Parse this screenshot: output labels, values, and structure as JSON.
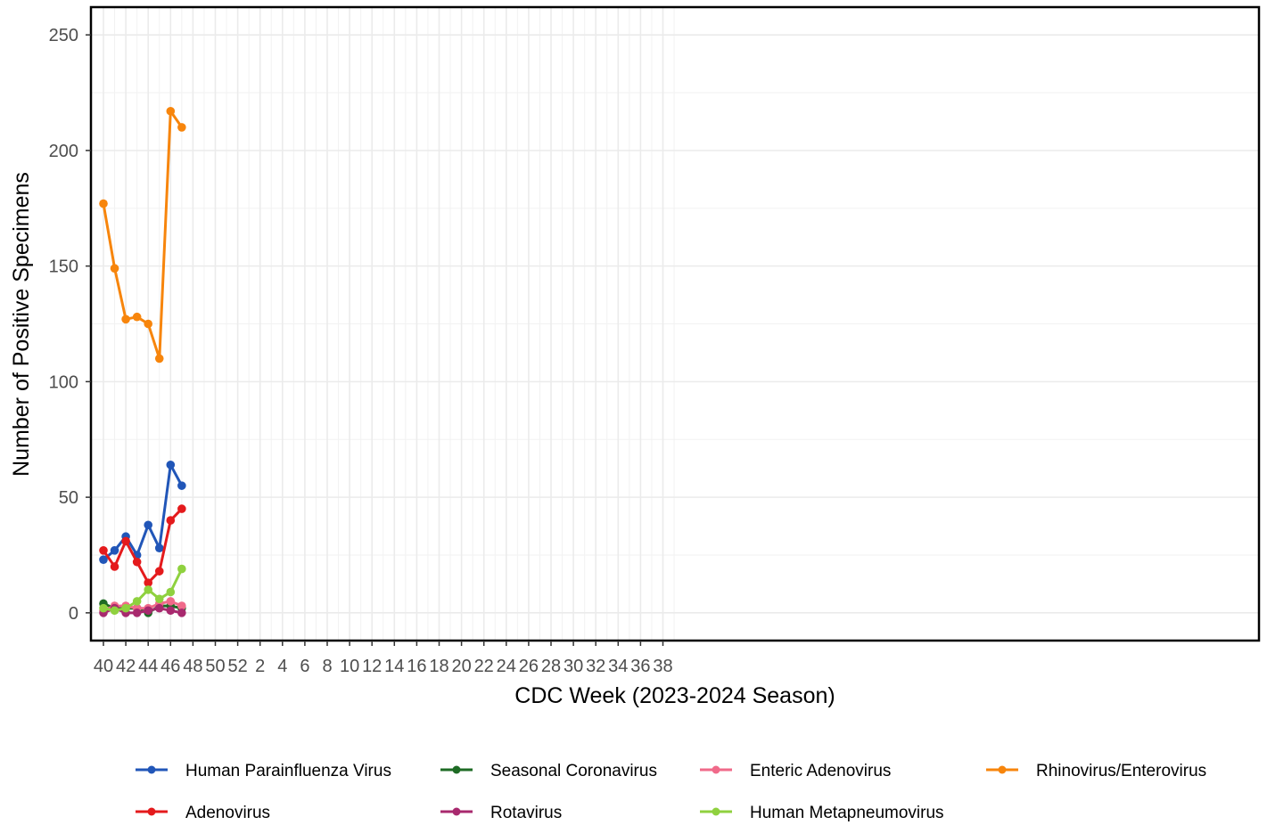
{
  "chart_data": {
    "type": "line",
    "xlabel": "CDC Week (2023-2024 Season)",
    "ylabel": "Number of Positive Specimens",
    "ylim": [
      -12,
      262
    ],
    "yticks": [
      0,
      50,
      100,
      150,
      200,
      250
    ],
    "x_categories": [
      "40",
      "41",
      "42",
      "43",
      "44",
      "45",
      "46",
      "47",
      "48",
      "49",
      "50",
      "51",
      "52",
      "1",
      "2",
      "3",
      "4",
      "5",
      "6",
      "7",
      "8",
      "9",
      "10",
      "11",
      "12",
      "13",
      "14",
      "15",
      "16",
      "17",
      "18",
      "19",
      "20",
      "21",
      "22",
      "23",
      "24",
      "25",
      "26",
      "27",
      "28",
      "29",
      "30",
      "31",
      "32",
      "33",
      "34",
      "35",
      "36",
      "37",
      "38",
      "39"
    ],
    "xtick_labels": [
      "40",
      "42",
      "44",
      "46",
      "48",
      "50",
      "52",
      "2",
      "4",
      "6",
      "8",
      "10",
      "12",
      "14",
      "16",
      "18",
      "20",
      "22",
      "24",
      "26",
      "28",
      "30",
      "32",
      "34",
      "36",
      "38"
    ],
    "grid": true,
    "legend_position": "bottom",
    "x": [
      "40",
      "41",
      "42",
      "43",
      "44",
      "45",
      "46",
      "47"
    ],
    "series": [
      {
        "name": "Human Parainfluenza Virus",
        "color": "#2156B8",
        "values": [
          23,
          27,
          33,
          25,
          38,
          28,
          64,
          55
        ]
      },
      {
        "name": "Seasonal Coronavirus",
        "color": "#1E6B25",
        "values": [
          4,
          2,
          2,
          2,
          0,
          3,
          3,
          2
        ]
      },
      {
        "name": "Enteric Adenovirus",
        "color": "#F06A8A",
        "values": [
          1,
          3,
          3,
          2,
          2,
          4,
          5,
          3
        ]
      },
      {
        "name": "Rhinovirus/Enterovirus",
        "color": "#F7850C",
        "values": [
          177,
          149,
          127,
          128,
          125,
          110,
          217,
          210
        ]
      },
      {
        "name": "Adenovirus",
        "color": "#E41A1C",
        "values": [
          27,
          20,
          31,
          22,
          13,
          18,
          40,
          45
        ]
      },
      {
        "name": "Rotavirus",
        "color": "#A8296E",
        "values": [
          0,
          2,
          0,
          0,
          1,
          2,
          1,
          0
        ]
      },
      {
        "name": "Human Metapneumovirus",
        "color": "#8FD13F",
        "values": [
          2,
          1,
          2,
          5,
          10,
          6,
          9,
          19
        ]
      }
    ]
  }
}
